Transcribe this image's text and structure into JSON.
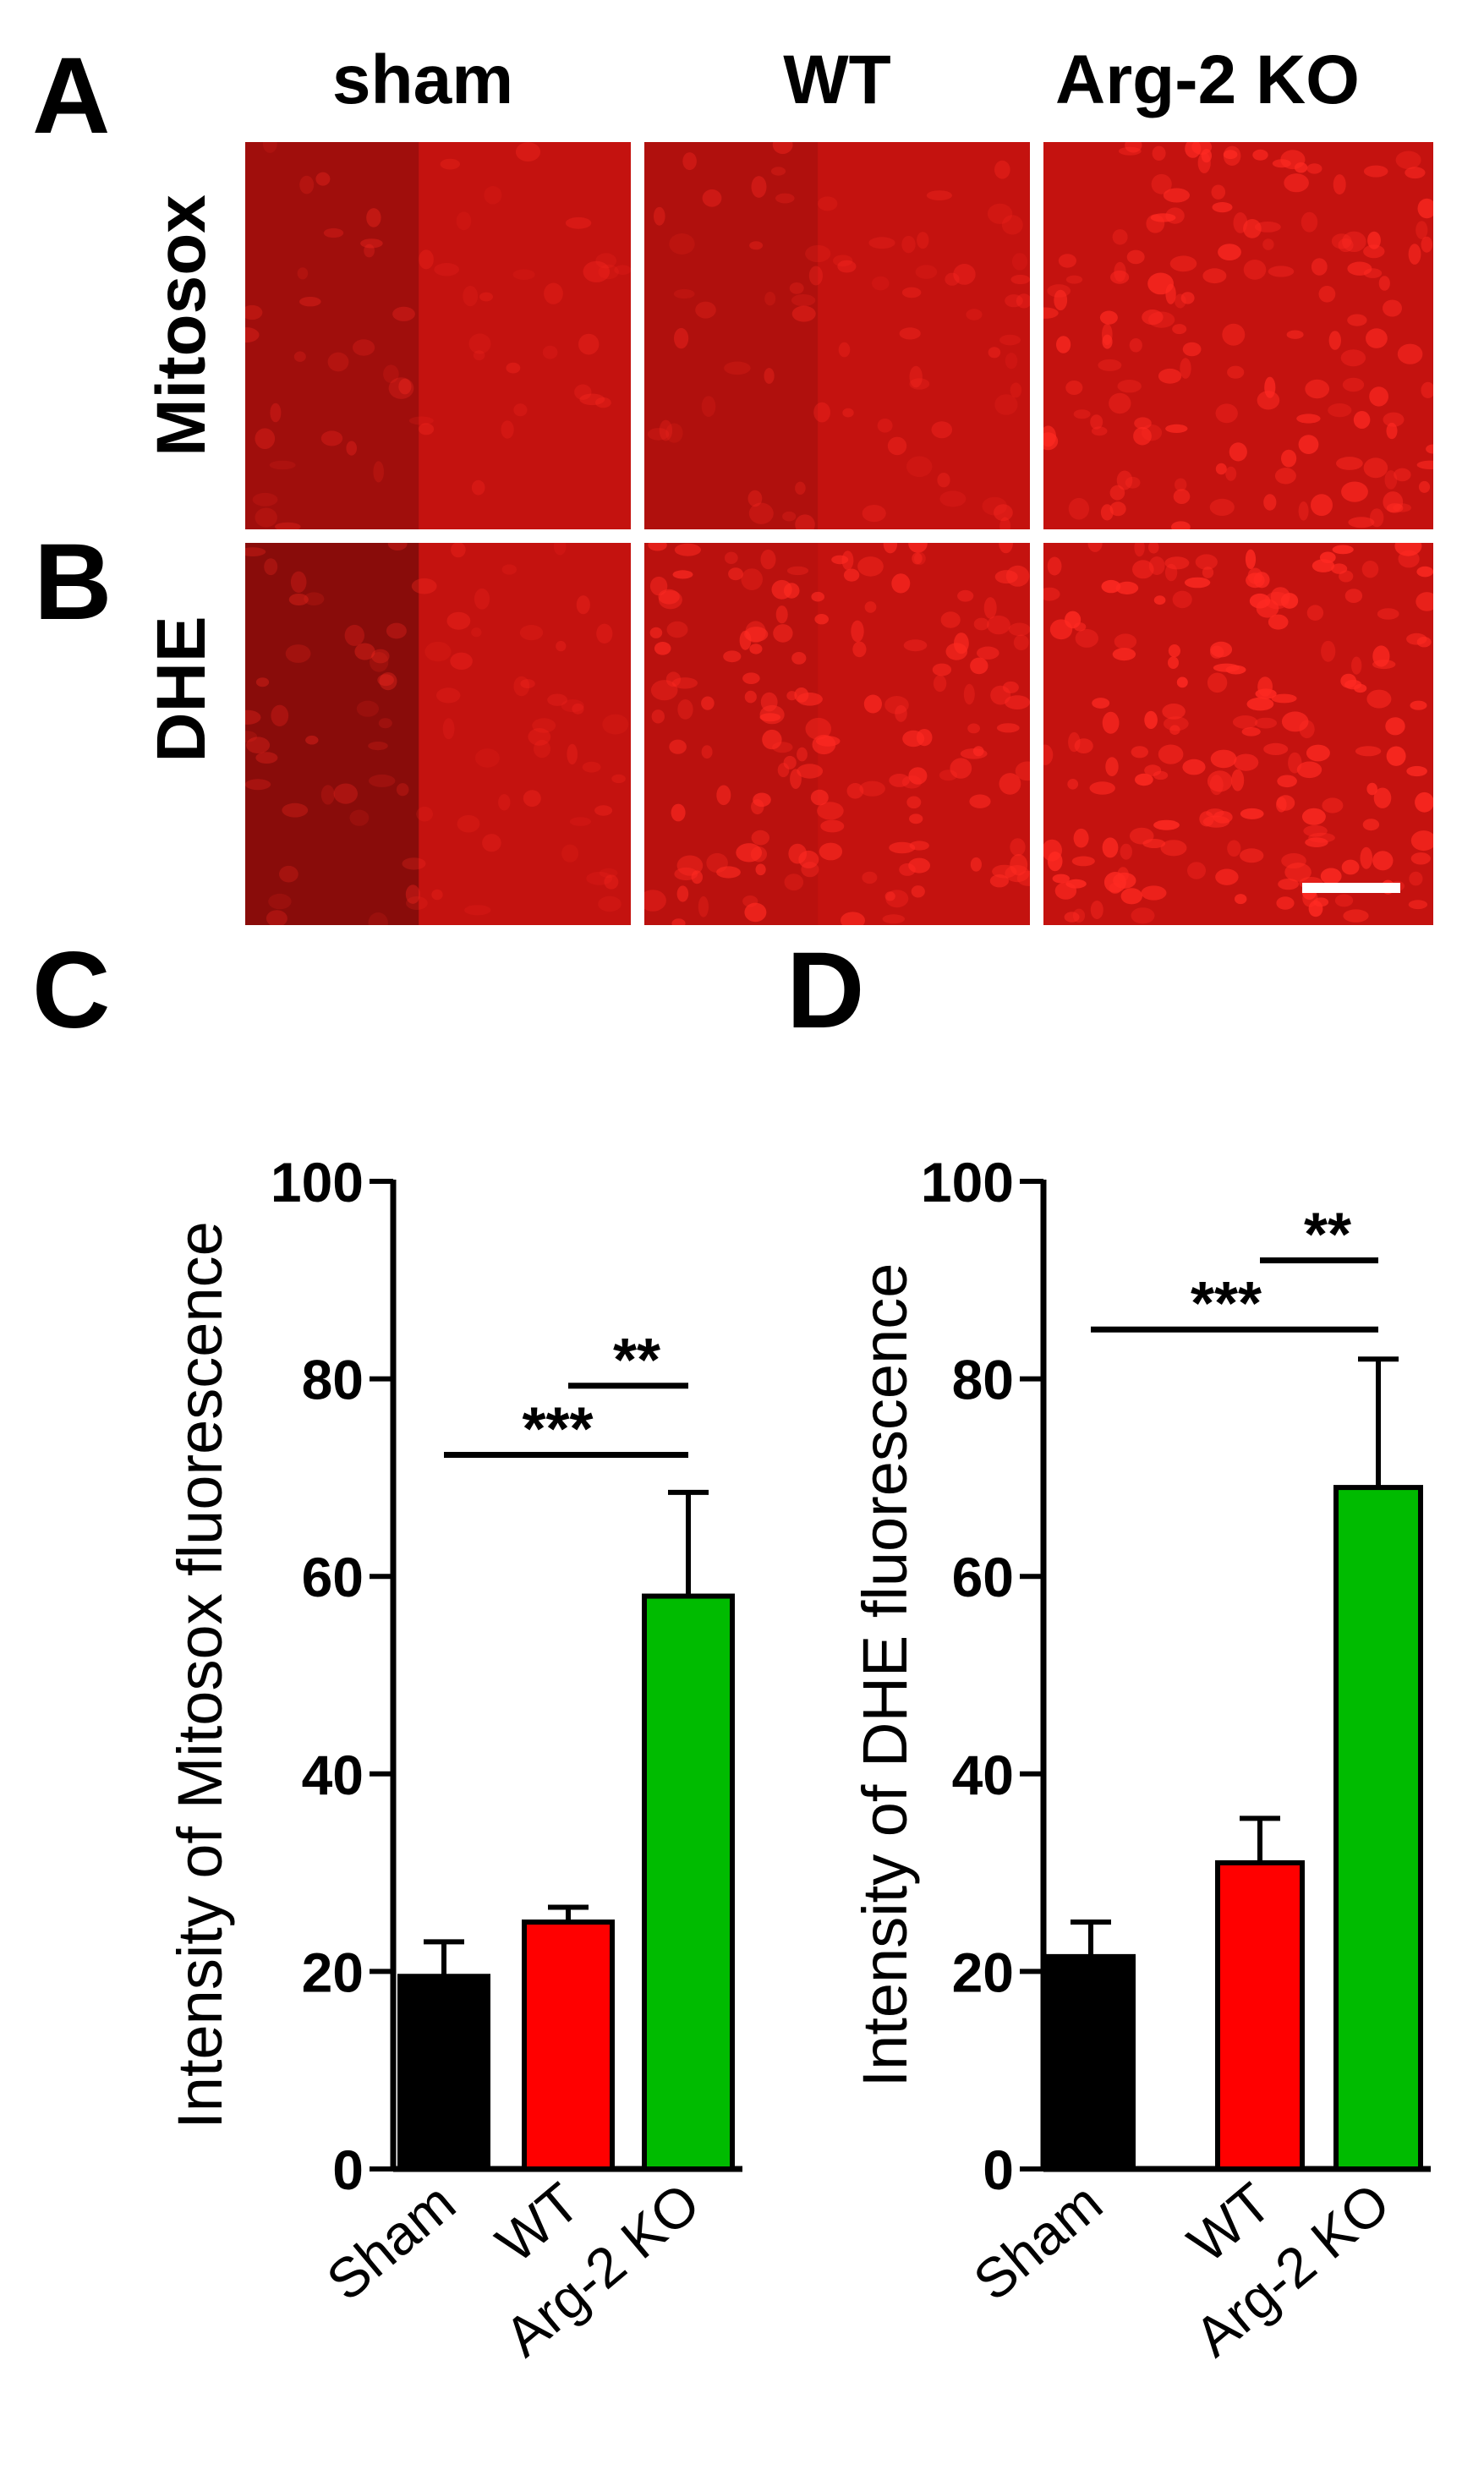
{
  "panels": {
    "A": "A",
    "B": "B",
    "C": "C",
    "D": "D"
  },
  "columns": [
    "sham",
    "WT",
    "Arg-2 KO"
  ],
  "rows": [
    "Mitosox",
    "DHE"
  ],
  "colors": {
    "micro_background": "#c4120f",
    "micro_cells": "#ff2a22",
    "sham_bar": "#000000",
    "wt_bar": "#ff0000",
    "ko_bar": "#00bb00"
  },
  "chart_data": [
    {
      "type": "bar",
      "categories": [
        "Sham",
        "WT",
        "Arg-2 KO"
      ],
      "values": [
        19.5,
        25,
        58
      ],
      "errors": [
        3.5,
        1.5,
        10.5
      ],
      "ylabel": "Intensity of Mitosox fluorescence",
      "ylim": [
        0,
        100
      ],
      "yticks": [
        0,
        20,
        40,
        60,
        80,
        100
      ],
      "bar_colors": [
        "#000000",
        "#ff0000",
        "#00bb00"
      ],
      "significance": [
        {
          "from": "Sham",
          "to": "Arg-2 KO",
          "label": "***",
          "y": 72.3
        },
        {
          "from": "WT",
          "to": "Arg-2 KO",
          "label": "**",
          "y": 79.3
        }
      ]
    },
    {
      "type": "bar",
      "categories": [
        "Sham",
        "WT",
        "Arg-2 KO"
      ],
      "values": [
        21.5,
        31,
        69
      ],
      "errors": [
        3.5,
        4.5,
        13
      ],
      "ylabel": "Intensity of DHE fluorescence",
      "ylim": [
        0,
        100
      ],
      "yticks": [
        0,
        20,
        40,
        60,
        80,
        100
      ],
      "bar_colors": [
        "#000000",
        "#ff0000",
        "#00bb00"
      ],
      "significance": [
        {
          "from": "Sham",
          "to": "Arg-2 KO",
          "label": "***",
          "y": 85
        },
        {
          "from": "WT",
          "to": "Arg-2 KO",
          "label": "**",
          "y": 92
        }
      ]
    }
  ]
}
